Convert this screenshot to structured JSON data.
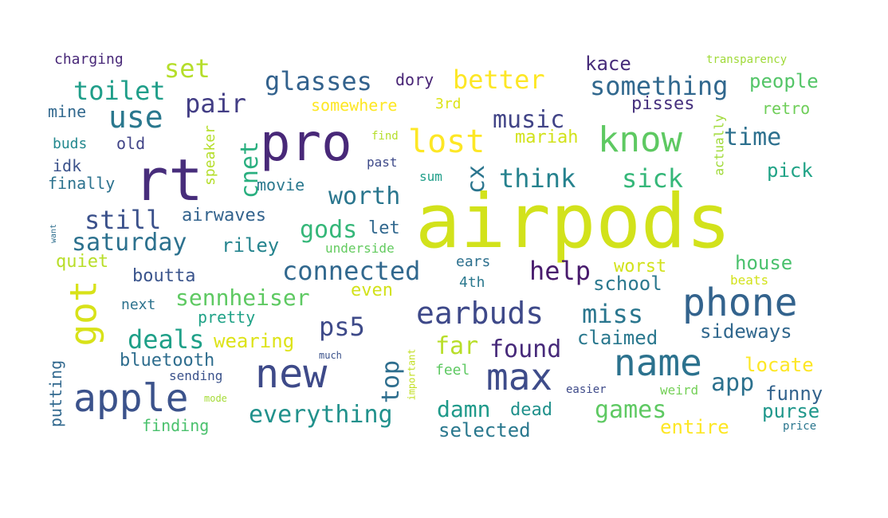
{
  "words": {
    "airpods": {
      "text": "airpods",
      "color": "#d2e21b"
    },
    "pro": {
      "text": "pro",
      "color": "#482878"
    },
    "rt": {
      "text": "rt",
      "color": "#472d7b"
    },
    "new": {
      "text": "new",
      "color": "#3e4a89"
    },
    "phone": {
      "text": "phone",
      "color": "#33638d"
    },
    "apple": {
      "text": "apple",
      "color": "#3b528b"
    },
    "max": {
      "text": "max",
      "color": "#3e4c8a"
    },
    "name": {
      "text": "name",
      "color": "#2c728e"
    },
    "know": {
      "text": "know",
      "color": "#5ec962"
    },
    "lost": {
      "text": "lost",
      "color": "#fde725"
    },
    "got": {
      "text": "got",
      "color": "#d8e219"
    },
    "earbuds": {
      "text": "earbuds",
      "color": "#3e4989"
    },
    "connected": {
      "text": "connected",
      "color": "#31688e"
    },
    "everything": {
      "text": "everything",
      "color": "#21918c"
    },
    "glasses": {
      "text": "glasses",
      "color": "#33628d"
    },
    "better": {
      "text": "better",
      "color": "#fde725"
    },
    "something": {
      "text": "something",
      "color": "#31688e"
    },
    "use": {
      "text": "use",
      "color": "#2a788e"
    },
    "toilet": {
      "text": "toilet",
      "color": "#1f9e89"
    },
    "set": {
      "text": "set",
      "color": "#b5de2b"
    },
    "pair": {
      "text": "pair",
      "color": "#433e85"
    },
    "music": {
      "text": "music",
      "color": "#414487"
    },
    "think": {
      "text": "think",
      "color": "#26828e"
    },
    "sick": {
      "text": "sick",
      "color": "#35b779"
    },
    "time": {
      "text": "time",
      "color": "#2d708e"
    },
    "worth": {
      "text": "worth",
      "color": "#2a768e"
    },
    "cnet": {
      "text": "cnet",
      "color": "#29af7f"
    },
    "cx": {
      "text": "cx",
      "color": "#2b758e"
    },
    "still": {
      "text": "still",
      "color": "#3b518b"
    },
    "saturday": {
      "text": "saturday",
      "color": "#2c718e"
    },
    "gods": {
      "text": "gods",
      "color": "#35b779"
    },
    "sennheiser": {
      "text": "sennheiser",
      "color": "#5ec962"
    },
    "help": {
      "text": "help",
      "color": "#481b6d"
    },
    "deals": {
      "text": "deals",
      "color": "#1fa088"
    },
    "ps5": {
      "text": "ps5",
      "color": "#3e4a89"
    },
    "miss": {
      "text": "miss",
      "color": "#2a768e"
    },
    "found": {
      "text": "found",
      "color": "#472a7a"
    },
    "games": {
      "text": "games",
      "color": "#5ec962"
    },
    "app": {
      "text": "app",
      "color": "#2c718e"
    },
    "top": {
      "text": "top",
      "color": "#2e6e8e"
    },
    "far": {
      "text": "far",
      "color": "#b8de29"
    },
    "damn": {
      "text": "damn",
      "color": "#1f9a8a"
    },
    "selected": {
      "text": "selected",
      "color": "#2a788e"
    },
    "dead": {
      "text": "dead",
      "color": "#21918c"
    },
    "entire": {
      "text": "entire",
      "color": "#fde725"
    },
    "purse": {
      "text": "purse",
      "color": "#1f978b"
    },
    "funny": {
      "text": "funny",
      "color": "#33638d"
    },
    "locate": {
      "text": "locate",
      "color": "#fde725"
    },
    "sideways": {
      "text": "sideways",
      "color": "#31688e"
    },
    "house": {
      "text": "house",
      "color": "#4ac16d"
    },
    "school": {
      "text": "school",
      "color": "#2a788e"
    },
    "worst": {
      "text": "worst",
      "color": "#d2e21b"
    },
    "claimed": {
      "text": "claimed",
      "color": "#2a788e"
    },
    "mariah": {
      "text": "mariah",
      "color": "#d2e21b"
    },
    "pisses": {
      "text": "pisses",
      "color": "#46307e"
    },
    "people": {
      "text": "people",
      "color": "#54c568"
    },
    "retro": {
      "text": "retro",
      "color": "#6ece58"
    },
    "pick": {
      "text": "pick",
      "color": "#20a386"
    },
    "kace": {
      "text": "kace",
      "color": "#472c7a"
    },
    "transparency": {
      "text": "transparency",
      "color": "#a0da39"
    },
    "dory": {
      "text": "dory",
      "color": "#482475"
    },
    "somewhere": {
      "text": "somewhere",
      "color": "#fde725"
    },
    "3rd": {
      "text": "3rd",
      "color": "#dde318"
    },
    "charging": {
      "text": "charging",
      "color": "#482878"
    },
    "mine": {
      "text": "mine",
      "color": "#31688e"
    },
    "buds": {
      "text": "buds",
      "color": "#23888e"
    },
    "old": {
      "text": "old",
      "color": "#414487"
    },
    "idk": {
      "text": "idk",
      "color": "#3b528b"
    },
    "finally": {
      "text": "finally",
      "color": "#2c728e"
    },
    "speaker": {
      "text": "speaker",
      "color": "#b5de2b"
    },
    "movie": {
      "text": "movie",
      "color": "#2a788e"
    },
    "airwaves": {
      "text": "airwaves",
      "color": "#33638d"
    },
    "riley": {
      "text": "riley",
      "color": "#25848e"
    },
    "let": {
      "text": "let",
      "color": "#31688e"
    },
    "underside": {
      "text": "underside",
      "color": "#63cb5f"
    },
    "quiet": {
      "text": "quiet",
      "color": "#b8de29"
    },
    "boutta": {
      "text": "boutta",
      "color": "#3a548c"
    },
    "even": {
      "text": "even",
      "color": "#d2e21b"
    },
    "next": {
      "text": "next",
      "color": "#2c728e"
    },
    "pretty": {
      "text": "pretty",
      "color": "#1fa287"
    },
    "wearing": {
      "text": "wearing",
      "color": "#dde318"
    },
    "bluetooth": {
      "text": "bluetooth",
      "color": "#2e6d8e"
    },
    "sending": {
      "text": "sending",
      "color": "#3b528b"
    },
    "putting": {
      "text": "putting",
      "color": "#31688e"
    },
    "finding": {
      "text": "finding",
      "color": "#4ac16d"
    },
    "mode": {
      "text": "mode",
      "color": "#a5db36"
    },
    "much": {
      "text": "much",
      "color": "#3b528b"
    },
    "important": {
      "text": "important",
      "color": "#c2df23"
    },
    "feel": {
      "text": "feel",
      "color": "#5ec962"
    },
    "ears": {
      "text": "ears",
      "color": "#2d708e"
    },
    "4th": {
      "text": "4th",
      "color": "#2a788e"
    },
    "beats": {
      "text": "beats",
      "color": "#d2e21b"
    },
    "easier": {
      "text": "easier",
      "color": "#3e4a89"
    },
    "weird": {
      "text": "weird",
      "color": "#73d056"
    },
    "price": {
      "text": "price",
      "color": "#2a768e"
    },
    "actually": {
      "text": "actually",
      "color": "#a0da39"
    },
    "find": {
      "text": "find",
      "color": "#b5de2b"
    },
    "past": {
      "text": "past",
      "color": "#3e4a89"
    },
    "sum": {
      "text": "sum",
      "color": "#1f9e89"
    },
    "want": {
      "text": "want",
      "color": "#2e6e8e"
    }
  }
}
